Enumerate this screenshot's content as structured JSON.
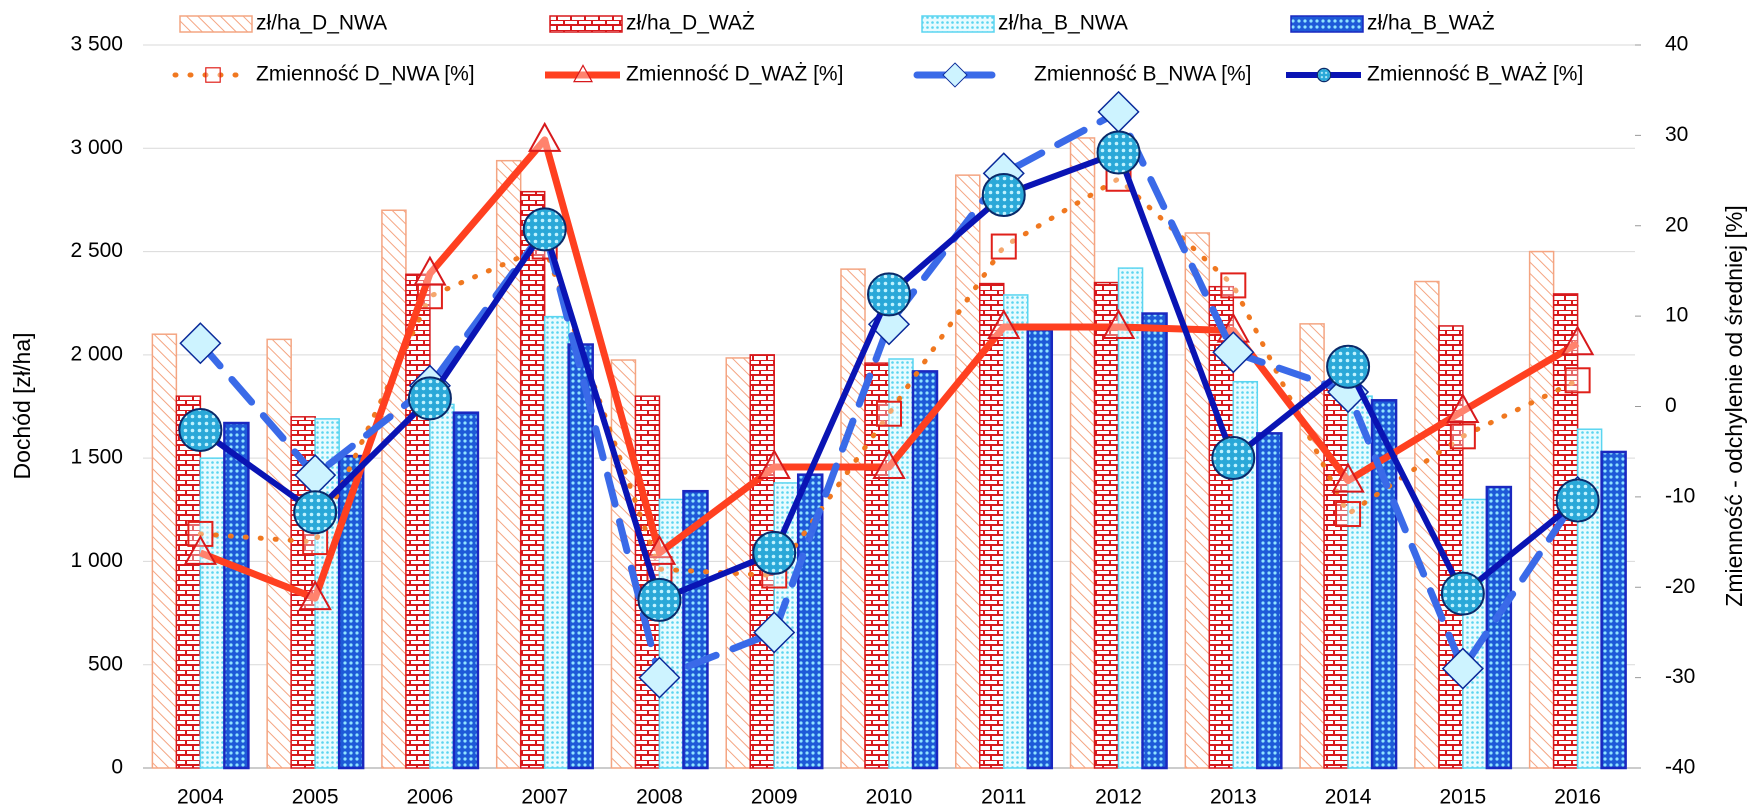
{
  "chart_data": {
    "type": "combo",
    "categories": [
      "2004",
      "2005",
      "2006",
      "2007",
      "2008",
      "2009",
      "2010",
      "2011",
      "2012",
      "2013",
      "2014",
      "2015",
      "2016"
    ],
    "ylabel": "Dochód [zł/ha]",
    "y2label": "Zmienność - odchylenie od średniej [%]",
    "ylim": [
      0,
      3500
    ],
    "yticks": [
      0,
      500,
      {
        "value": 1000,
        "label": "1 000"
      },
      {
        "value": 1500,
        "label": "1 500"
      },
      {
        "value": 2000,
        "label": "2 000"
      },
      {
        "value": 2500,
        "label": "2 500"
      },
      {
        "value": 3000,
        "label": "3 000"
      },
      {
        "value": 3500,
        "label": "3 500"
      }
    ],
    "y2lim": [
      -40,
      40
    ],
    "y2ticks": [
      -40,
      -30,
      -20,
      -10,
      0,
      10,
      20,
      30,
      40
    ],
    "grid": true,
    "series": [
      {
        "name": "zł/ha_D_NWA",
        "type": "bar",
        "color": "#f4a582",
        "values": [
          2100,
          2075,
          2700,
          2940,
          1975,
          1985,
          2415,
          2870,
          3050,
          2590,
          2150,
          2355,
          2500
        ]
      },
      {
        "name": "zł/ha_D_WAŻ",
        "type": "bar",
        "color": "#d7191c",
        "values": [
          1800,
          1700,
          2390,
          2790,
          1800,
          2000,
          1960,
          2345,
          2350,
          2330,
          1850,
          2140,
          2295
        ]
      },
      {
        "name": "zł/ha_B_NWA",
        "type": "bar",
        "color": "#5bd5f0",
        "values": [
          1500,
          1690,
          1760,
          2185,
          1300,
          1380,
          1980,
          2290,
          2420,
          1870,
          1800,
          1300,
          1640
        ]
      },
      {
        "name": "zł/ha_B_WAŻ",
        "type": "bar",
        "color": "#1a28c0",
        "values": [
          1670,
          1510,
          1720,
          2050,
          1340,
          1420,
          1920,
          2120,
          2200,
          1620,
          1780,
          1360,
          1530
        ]
      },
      {
        "name": "Zmienność D_NWA [%]",
        "type": "line",
        "axis": "y2",
        "color": "#f07820",
        "values": [
          -14.1,
          -15,
          12.2,
          17.7,
          -18,
          -18.7,
          -0.8,
          17.7,
          25.2,
          13.4,
          -11.9,
          -3.3,
          2.9
        ]
      },
      {
        "name": "Zmienność D_WAŻ [%]",
        "type": "line",
        "axis": "y2",
        "color": "#ff4020",
        "values": [
          -16.2,
          -21.2,
          14.7,
          29.5,
          -16.2,
          -6.7,
          -6.7,
          8.8,
          8.8,
          8.4,
          -8.2,
          -0.5,
          7
        ]
      },
      {
        "name": "Zmienność B_NWA [%]",
        "type": "line",
        "axis": "y2",
        "color": "#3a6ae8",
        "values": [
          7,
          -7.6,
          2.3,
          19.6,
          -30,
          -25,
          9.1,
          25.8,
          32.6,
          6,
          1.6,
          -29,
          -10
        ]
      },
      {
        "name": "Zmienność B_WAŻ [%]",
        "type": "line",
        "axis": "y2",
        "color": "#0a14b4",
        "values": [
          -2.6,
          -11.7,
          0.9,
          19.6,
          -21.4,
          -16.2,
          12.4,
          23.4,
          28.1,
          -5.7,
          4.4,
          -20.7,
          -10.4
        ]
      }
    ]
  }
}
